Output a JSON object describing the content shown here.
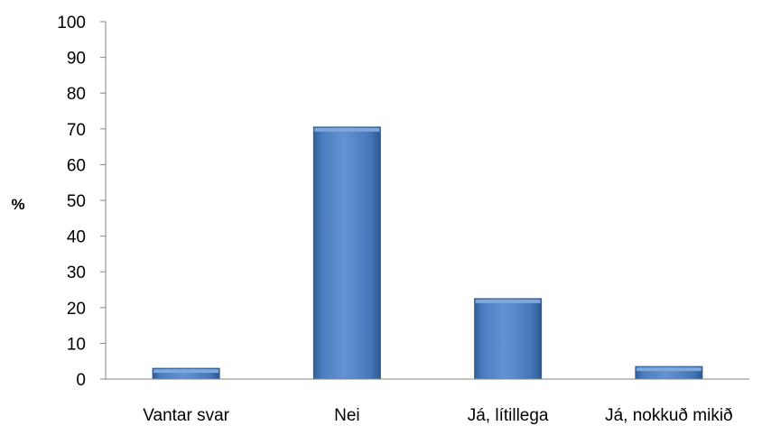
{
  "chart_data": {
    "type": "bar",
    "categories": [
      "Vantar svar",
      "Nei",
      "Já, lítillega",
      "Já, nokkuð mikið"
    ],
    "values": [
      3,
      70.5,
      22.5,
      3.5
    ],
    "title": "",
    "xlabel": "",
    "ylabel": "%",
    "ylim": [
      0,
      100
    ],
    "yticks": [
      0,
      10,
      20,
      30,
      40,
      50,
      60,
      70,
      80,
      90,
      100
    ],
    "grid": false,
    "legend": "none",
    "colors": {
      "bar_fill": "#4f81bd",
      "bar_light": "#7ea8dc",
      "bar_dark": "#2c5b92",
      "axis": "#868686"
    }
  }
}
